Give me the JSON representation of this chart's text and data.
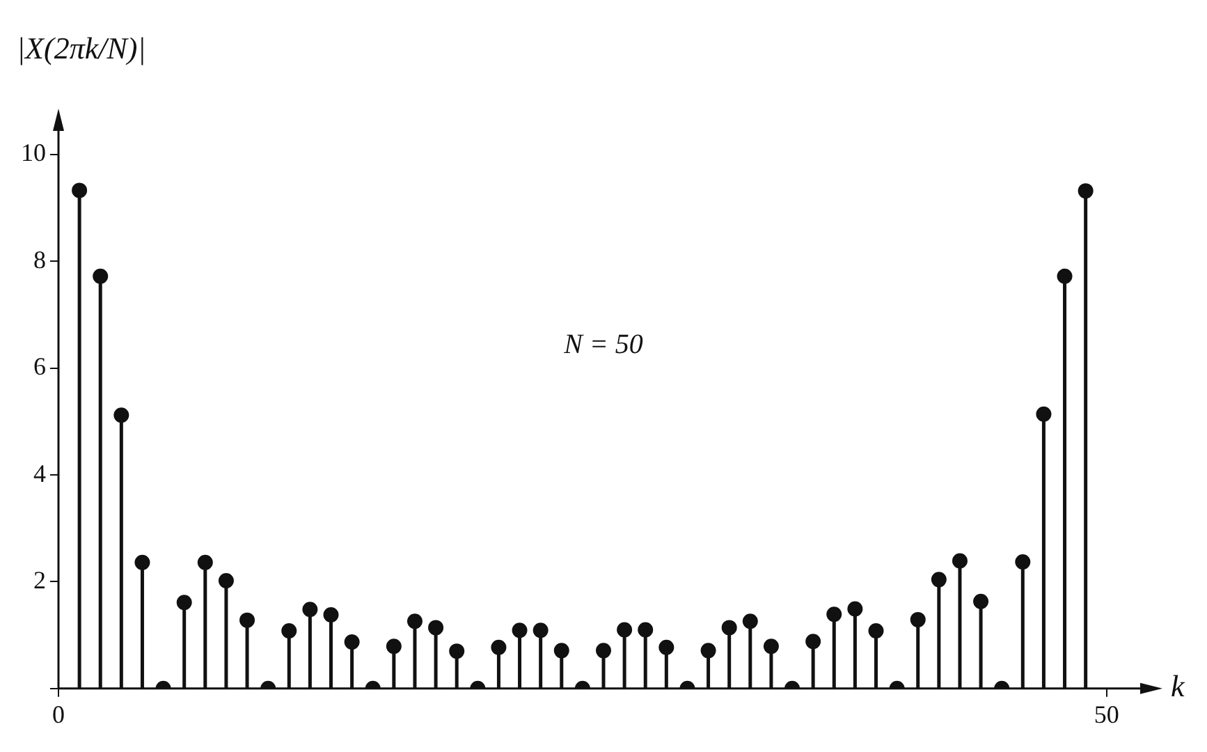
{
  "chart_data": {
    "type": "lollipop",
    "xlabel": "k",
    "ylabel": "|X(2πk/N)|",
    "annotations": [
      "N = 50"
    ],
    "marker": "circle",
    "color": "#111111",
    "x": [
      1,
      2,
      3,
      4,
      5,
      6,
      7,
      8,
      9,
      10,
      11,
      12,
      13,
      14,
      15,
      16,
      17,
      18,
      19,
      20,
      21,
      22,
      23,
      24,
      25,
      26,
      27,
      28,
      29,
      30,
      31,
      32,
      33,
      34,
      35,
      36,
      37,
      38,
      39,
      40,
      41,
      42,
      43,
      44,
      45,
      46,
      47,
      48,
      49
    ],
    "values": [
      9.33,
      7.72,
      5.12,
      2.36,
      0,
      1.61,
      2.36,
      2.02,
      1.28,
      0,
      1.08,
      1.48,
      1.38,
      0.87,
      0,
      0.79,
      1.26,
      1.14,
      0.7,
      0,
      0.77,
      1.09,
      1.09,
      0.71,
      0,
      0.71,
      1.1,
      1.1,
      0.77,
      0,
      0.71,
      1.14,
      1.26,
      0.79,
      0,
      0.88,
      1.39,
      1.49,
      1.08,
      0,
      1.29,
      2.04,
      2.39,
      1.63,
      0,
      2.37,
      5.14,
      7.72,
      9.32
    ],
    "xlim": [
      0,
      52
    ],
    "xticks": [
      0,
      50
    ],
    "ylim": [
      0,
      10.6
    ],
    "yticks": [
      {
        "value": 0,
        "label": null
      },
      2,
      4,
      6,
      8,
      10
    ],
    "grid": false
  }
}
